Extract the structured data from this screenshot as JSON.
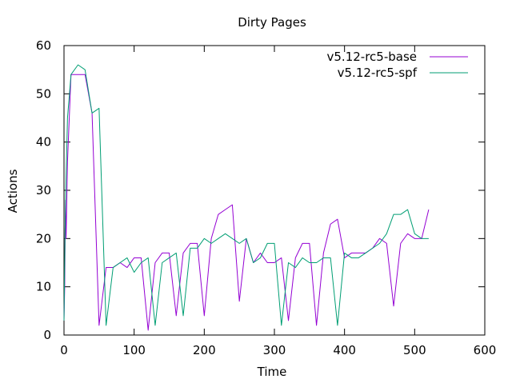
{
  "chart_data": {
    "type": "line",
    "title": "Dirty Pages",
    "xlabel": "Time",
    "ylabel": "Actions",
    "xlim": [
      0,
      600
    ],
    "ylim": [
      0,
      60
    ],
    "xticks": [
      0,
      100,
      200,
      300,
      400,
      500,
      600
    ],
    "yticks": [
      0,
      10,
      20,
      30,
      40,
      50,
      60
    ],
    "grid": false,
    "legend_position": "top-right",
    "series": [
      {
        "name": "v5.12-rc5-base",
        "color": "#9400d3",
        "x": [
          0,
          1,
          2,
          3,
          5,
          10,
          20,
          30,
          40,
          50,
          60,
          70,
          80,
          90,
          100,
          110,
          120,
          130,
          140,
          150,
          160,
          170,
          180,
          190,
          200,
          210,
          220,
          230,
          240,
          250,
          260,
          270,
          280,
          290,
          300,
          310,
          320,
          330,
          340,
          350,
          360,
          370,
          380,
          390,
          400,
          410,
          420,
          430,
          440,
          450,
          460,
          470,
          480,
          490,
          500,
          510,
          520
        ],
        "values": [
          3,
          10,
          28,
          20,
          36,
          54,
          54,
          54,
          46,
          2,
          14,
          14,
          15,
          14,
          16,
          16,
          1,
          15,
          17,
          17,
          4,
          17,
          19,
          19,
          4,
          20,
          25,
          26,
          27,
          7,
          20,
          15,
          17,
          15,
          15,
          16,
          3,
          16,
          19,
          19,
          2,
          17,
          23,
          24,
          16,
          17,
          17,
          17,
          18,
          20,
          19,
          6,
          19,
          21,
          20,
          20,
          26
        ]
      },
      {
        "name": "v5.12-rc5-spf",
        "color": "#009e73",
        "x": [
          0,
          1,
          2,
          3,
          5,
          10,
          20,
          30,
          40,
          50,
          60,
          70,
          80,
          90,
          100,
          110,
          120,
          130,
          140,
          150,
          160,
          170,
          180,
          190,
          200,
          210,
          220,
          230,
          240,
          250,
          260,
          270,
          280,
          290,
          300,
          310,
          320,
          330,
          340,
          350,
          360,
          370,
          380,
          390,
          400,
          410,
          420,
          430,
          440,
          450,
          460,
          470,
          480,
          490,
          500,
          510,
          520
        ],
        "values": [
          3,
          15,
          26,
          33,
          45,
          54,
          56,
          55,
          46,
          47,
          2,
          14,
          15,
          16,
          13,
          15,
          16,
          2,
          15,
          16,
          17,
          4,
          18,
          18,
          20,
          19,
          20,
          21,
          20,
          19,
          20,
          15,
          16,
          19,
          19,
          2,
          15,
          14,
          16,
          15,
          15,
          16,
          16,
          2,
          17,
          16,
          16,
          17,
          18,
          19,
          21,
          25,
          25,
          26,
          21,
          20,
          20
        ]
      }
    ]
  }
}
